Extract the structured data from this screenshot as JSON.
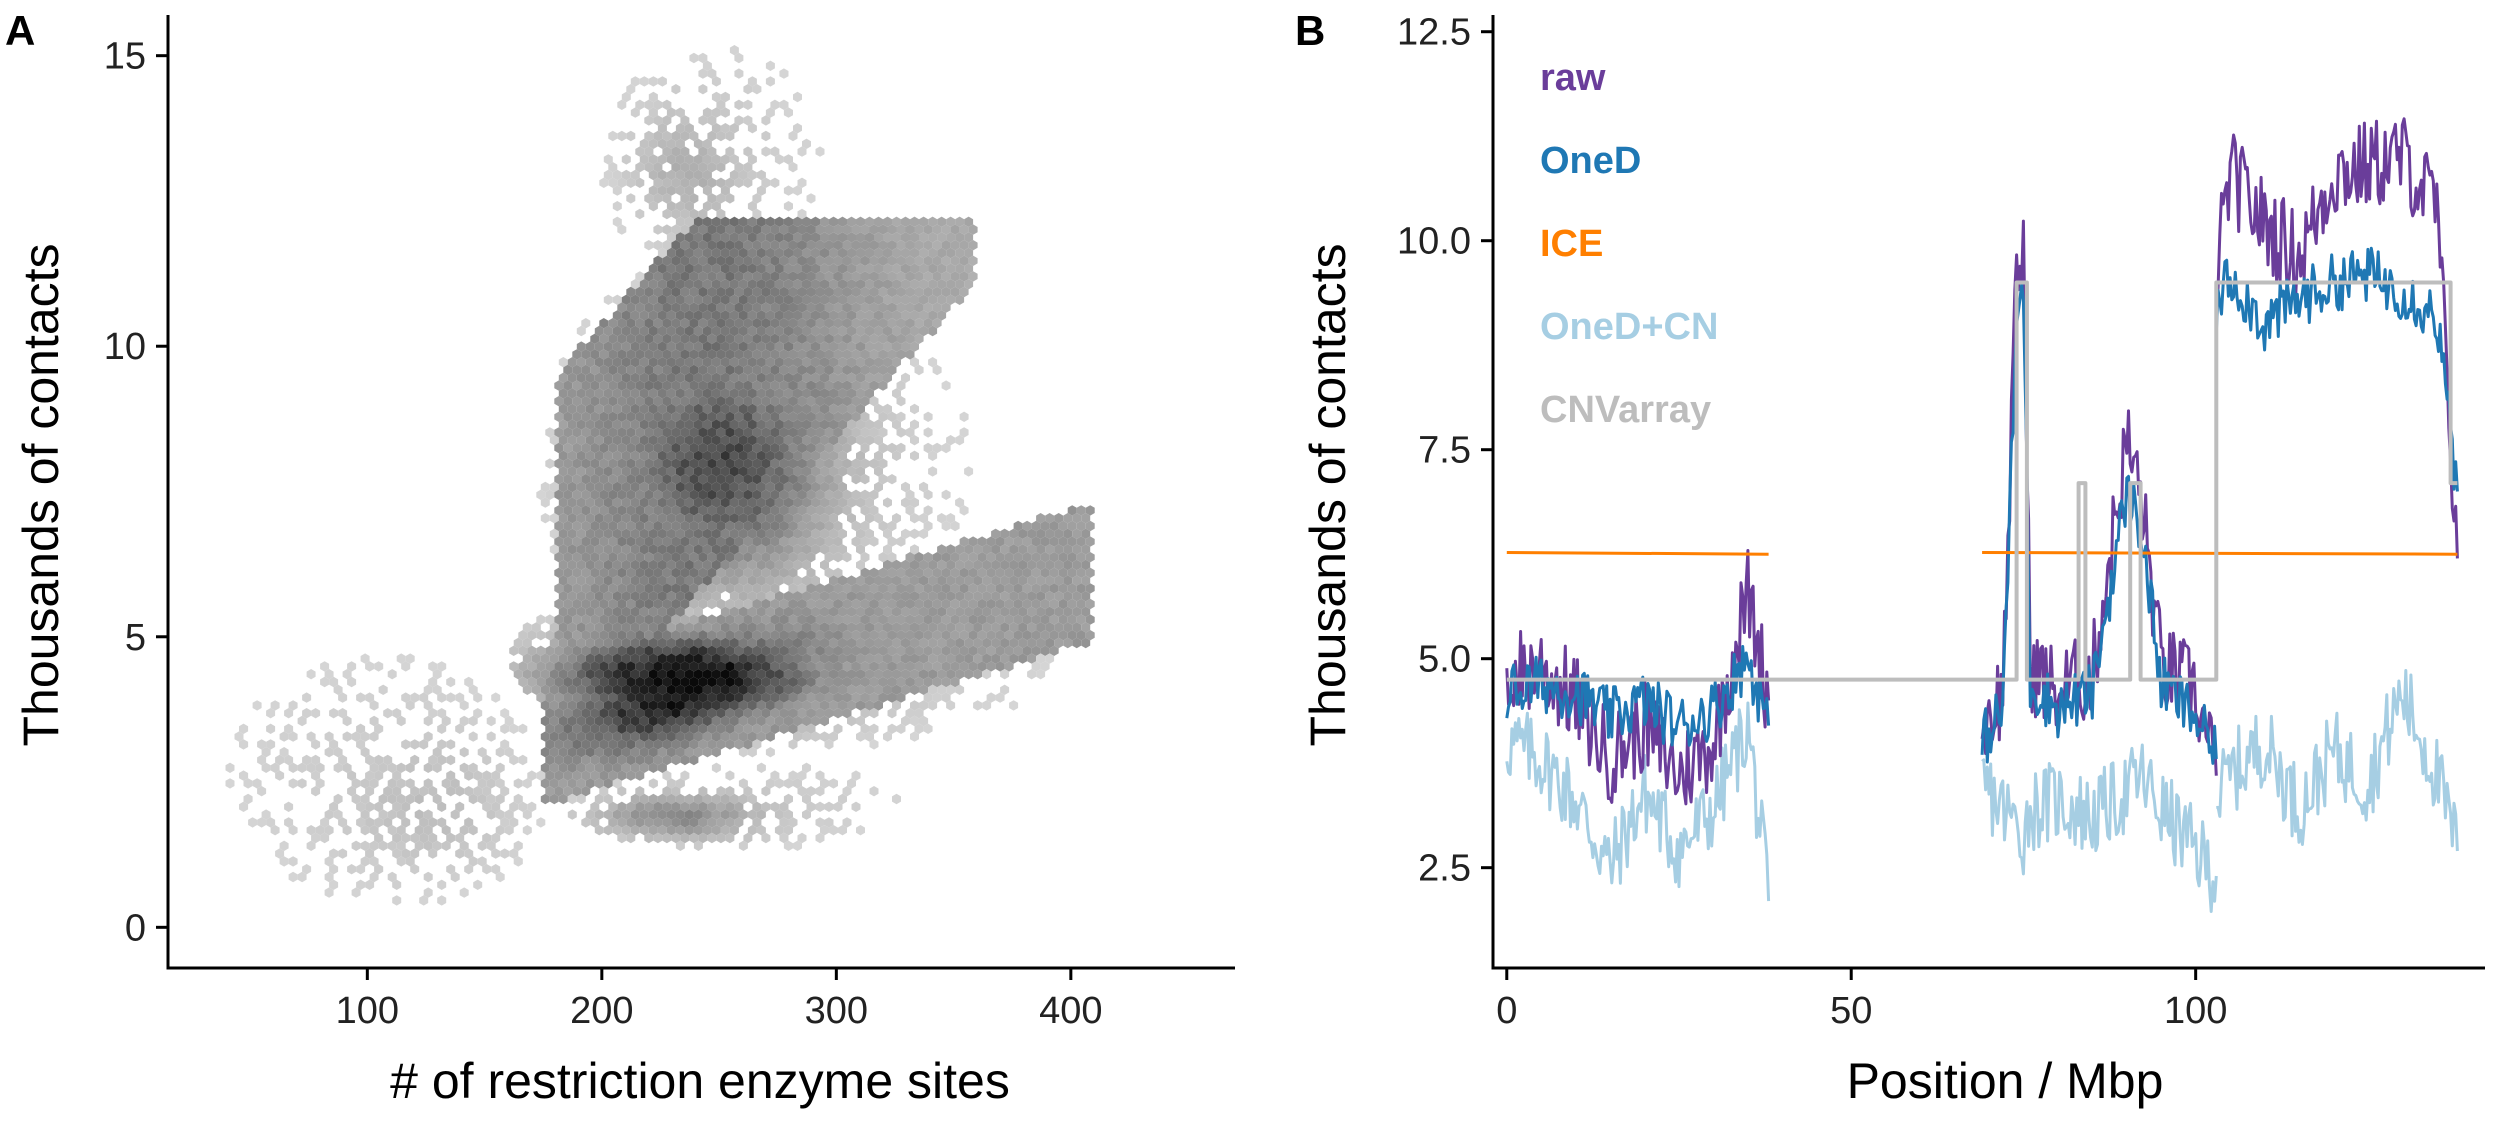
{
  "chart_data": [
    {
      "panel_label": "A",
      "type": "heatmap",
      "subtype": "hexbin-density",
      "xlabel": "# of restriction enzyme sites",
      "ylabel": "Thousands of contacts",
      "xlim": [
        15,
        470
      ],
      "ylim": [
        -0.7,
        15.7
      ],
      "xticks": [
        100,
        200,
        300,
        400
      ],
      "yticks": [
        0,
        5,
        10,
        15
      ],
      "grid": false,
      "colors": {
        "low": "#d9d9d9",
        "high": "#0a0a0a"
      },
      "density_clusters": [
        {
          "name": "lower band",
          "x": [
            170,
            410
          ],
          "y": [
            3.0,
            6.3
          ],
          "peak_x": 235,
          "peak_y": 4.3,
          "peak_weight": 1.0
        },
        {
          "name": "upper band",
          "x": [
            180,
            370
          ],
          "y": [
            3.5,
            12.0
          ],
          "peak_x": 250,
          "peak_y": 8.0,
          "peak_weight": 0.65
        },
        {
          "name": "bottom band",
          "x": [
            190,
            340
          ],
          "y": [
            1.3,
            3.0
          ],
          "peak_x": 230,
          "peak_y": 1.9,
          "peak_weight": 0.35
        },
        {
          "name": "top tail",
          "x": [
            200,
            300
          ],
          "y": [
            11.0,
            15.5
          ],
          "peak_x": 235,
          "peak_y": 13.0,
          "peak_weight": 0.15
        },
        {
          "name": "left tail",
          "x": [
            30,
            180
          ],
          "y": [
            0.2,
            5.0
          ],
          "peak_x": 130,
          "peak_y": 2.0,
          "peak_weight": 0.08
        }
      ]
    },
    {
      "panel_label": "B",
      "type": "line",
      "xlabel": "Position / Mbp",
      "ylabel": "Thousands of contacts",
      "xlim": [
        -2,
        142
      ],
      "ylim": [
        1.3,
        12.7
      ],
      "xticks": [
        0,
        50,
        100
      ],
      "yticks": [
        2.5,
        5.0,
        7.5,
        10.0,
        12.5
      ],
      "ytick_labels": [
        "2.5",
        "5.0",
        "7.5",
        "10.0",
        "12.5"
      ],
      "grid": false,
      "legend": "top-left",
      "series": [
        {
          "name": "raw",
          "color": "#6a3d9a",
          "segments": [
            {
              "x": [
                0,
                5,
                10,
                15,
                20,
                25,
                30,
                35,
                38
              ],
              "y": [
                4.8,
                4.9,
                4.5,
                3.8,
                4.2,
                3.6,
                4.0,
                5.8,
                4.5
              ]
            },
            {
              "x": [
                69,
                72,
                74,
                75,
                76,
                80,
                85,
                90,
                92,
                95,
                100,
                103
              ],
              "y": [
                4.2,
                4.6,
                9.5,
                10.0,
                4.9,
                4.6,
                4.8,
                7.6,
                7.0,
                4.9,
                4.6,
                3.6
              ]
            },
            {
              "x": [
                103,
                105,
                110,
                115,
                120,
                125,
                130,
                135,
                138
              ],
              "y": [
                9.6,
                10.8,
                10.2,
                9.8,
                10.8,
                10.9,
                11.0,
                10.4,
                6.2
              ]
            }
          ]
        },
        {
          "name": "OneD",
          "color": "#1f78b4",
          "segments": [
            {
              "x": [
                0,
                5,
                10,
                15,
                20,
                25,
                30,
                35,
                38
              ],
              "y": [
                4.6,
                4.7,
                4.6,
                4.3,
                4.5,
                4.2,
                4.4,
                5.0,
                4.2
              ]
            },
            {
              "x": [
                69,
                72,
                74,
                75,
                76,
                80,
                85,
                90,
                92,
                95,
                100,
                103
              ],
              "y": [
                4.0,
                4.4,
                9.0,
                9.5,
                4.7,
                4.4,
                4.6,
                7.0,
                6.6,
                4.7,
                4.3,
                3.8
              ]
            },
            {
              "x": [
                103,
                105,
                110,
                115,
                120,
                125,
                130,
                135,
                138
              ],
              "y": [
                9.2,
                9.6,
                9.0,
                9.3,
                9.5,
                9.6,
                9.4,
                9.1,
                7.0
              ]
            }
          ]
        },
        {
          "name": "ICE",
          "color": "#ff7f00",
          "segments": [
            {
              "x": [
                0,
                38
              ],
              "y": [
                6.27,
                6.25
              ]
            },
            {
              "x": [
                69,
                138
              ],
              "y": [
                6.27,
                6.25
              ]
            }
          ]
        },
        {
          "name": "OneD+CN",
          "color": "#a6cee3",
          "segments": [
            {
              "x": [
                0,
                5,
                10,
                15,
                20,
                25,
                30,
                35,
                38
              ],
              "y": [
                4.0,
                3.8,
                3.3,
                2.5,
                3.4,
                2.7,
                3.2,
                4.2,
                2.1
              ]
            },
            {
              "x": [
                69,
                72,
                74,
                75,
                76,
                80,
                85,
                90,
                92,
                95,
                100,
                103
              ],
              "y": [
                3.5,
                3.2,
                3.0,
                2.9,
                3.2,
                3.3,
                3.1,
                3.4,
                3.6,
                3.2,
                2.7,
                2.4
              ]
            },
            {
              "x": [
                103,
                105,
                110,
                115,
                120,
                125,
                130,
                135,
                138
              ],
              "y": [
                3.3,
                3.6,
                4.0,
                3.2,
                3.9,
                3.5,
                4.6,
                3.6,
                2.7
              ]
            }
          ]
        },
        {
          "name": "CNVarray",
          "color": "#bdbdbd",
          "step": true,
          "segments": [
            {
              "x": [
                0,
                38,
                69,
                74,
                74,
                75.5,
                75.5,
                83,
                83,
                84,
                84,
                90.5,
                90.5,
                92,
                92,
                103,
                103,
                137,
                137,
                138
              ],
              "y": [
                4.75,
                4.75,
                4.75,
                4.75,
                9.5,
                9.5,
                4.75,
                4.75,
                7.1,
                7.1,
                4.75,
                4.75,
                7.1,
                7.1,
                4.75,
                4.75,
                9.5,
                9.5,
                7.1,
                7.1
              ]
            }
          ]
        }
      ]
    }
  ]
}
